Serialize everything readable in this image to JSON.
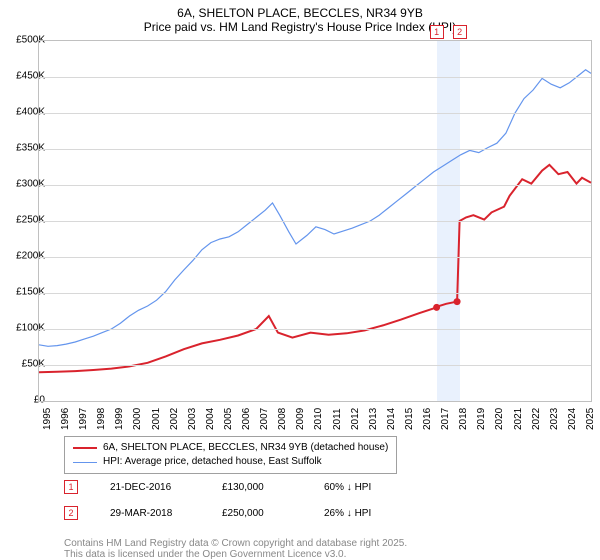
{
  "title_line1": "6A, SHELTON PLACE, BECCLES, NR34 9YB",
  "title_line2": "Price paid vs. HM Land Registry's House Price Index (HPI)",
  "chart": {
    "type": "line",
    "y_min": 0,
    "y_max": 500000,
    "y_step": 50000,
    "y_tick_labels": [
      "£0",
      "£50K",
      "£100K",
      "£150K",
      "£200K",
      "£250K",
      "£300K",
      "£350K",
      "£400K",
      "£450K",
      "£500K"
    ],
    "x_min": 1995,
    "x_max": 2025,
    "x_labels": [
      "1995",
      "1996",
      "1997",
      "1998",
      "1999",
      "2000",
      "2001",
      "2002",
      "2003",
      "2004",
      "2005",
      "2006",
      "2007",
      "2008",
      "2009",
      "2010",
      "2011",
      "2012",
      "2013",
      "2014",
      "2015",
      "2016",
      "2017",
      "2018",
      "2019",
      "2020",
      "2021",
      "2022",
      "2023",
      "2024",
      "2025"
    ],
    "grid_color": "#d8d8d8",
    "border_color": "#c0c0c0",
    "background_color": "#ffffff",
    "highlight_band": {
      "x_start": 2016.97,
      "x_end": 2018.24,
      "color": "#dbe8fc"
    },
    "series": [
      {
        "name": "price_paid",
        "label": "6A, SHELTON PLACE, BECCLES, NR34 9YB (detached house)",
        "color": "#d9232d",
        "width": 2,
        "data": [
          [
            1995,
            40000
          ],
          [
            1996,
            40500
          ],
          [
            1997,
            41500
          ],
          [
            1998,
            43000
          ],
          [
            1999,
            45000
          ],
          [
            2000,
            48000
          ],
          [
            2001,
            53000
          ],
          [
            2002,
            62000
          ],
          [
            2003,
            72000
          ],
          [
            2004,
            80000
          ],
          [
            2005,
            85000
          ],
          [
            2006,
            91000
          ],
          [
            2007,
            100000
          ],
          [
            2007.7,
            118000
          ],
          [
            2008.2,
            95000
          ],
          [
            2009,
            88000
          ],
          [
            2010,
            95000
          ],
          [
            2011,
            92000
          ],
          [
            2012,
            94000
          ],
          [
            2013,
            98000
          ],
          [
            2014,
            105000
          ],
          [
            2015,
            113000
          ],
          [
            2016,
            122000
          ],
          [
            2016.97,
            130000
          ],
          [
            2017.1,
            132000
          ],
          [
            2017.5,
            135000
          ],
          [
            2018.1,
            138000
          ],
          [
            2018.24,
            250000
          ],
          [
            2018.6,
            255000
          ],
          [
            2019,
            258000
          ],
          [
            2019.6,
            252000
          ],
          [
            2020,
            262000
          ],
          [
            2020.7,
            270000
          ],
          [
            2021,
            285000
          ],
          [
            2021.7,
            308000
          ],
          [
            2022.2,
            302000
          ],
          [
            2022.8,
            320000
          ],
          [
            2023.2,
            328000
          ],
          [
            2023.7,
            315000
          ],
          [
            2024.2,
            318000
          ],
          [
            2024.7,
            302000
          ],
          [
            2025,
            310000
          ],
          [
            2025.5,
            303000
          ]
        ]
      },
      {
        "name": "hpi",
        "label": "HPI: Average price, detached house, East Suffolk",
        "color": "#6495ed",
        "width": 1.2,
        "data": [
          [
            1995,
            78000
          ],
          [
            1995.5,
            76000
          ],
          [
            1996,
            77000
          ],
          [
            1996.5,
            79000
          ],
          [
            1997,
            82000
          ],
          [
            1997.5,
            86000
          ],
          [
            1998,
            90000
          ],
          [
            1998.5,
            95000
          ],
          [
            1999,
            100000
          ],
          [
            1999.5,
            108000
          ],
          [
            2000,
            118000
          ],
          [
            2000.5,
            126000
          ],
          [
            2001,
            132000
          ],
          [
            2001.5,
            140000
          ],
          [
            2002,
            152000
          ],
          [
            2002.5,
            168000
          ],
          [
            2003,
            182000
          ],
          [
            2003.5,
            195000
          ],
          [
            2004,
            210000
          ],
          [
            2004.5,
            220000
          ],
          [
            2005,
            225000
          ],
          [
            2005.5,
            228000
          ],
          [
            2006,
            235000
          ],
          [
            2006.5,
            245000
          ],
          [
            2007,
            255000
          ],
          [
            2007.5,
            265000
          ],
          [
            2007.9,
            275000
          ],
          [
            2008.3,
            258000
          ],
          [
            2008.8,
            235000
          ],
          [
            2009.2,
            218000
          ],
          [
            2009.8,
            230000
          ],
          [
            2010.3,
            242000
          ],
          [
            2010.8,
            238000
          ],
          [
            2011.3,
            232000
          ],
          [
            2011.8,
            236000
          ],
          [
            2012.3,
            240000
          ],
          [
            2012.8,
            245000
          ],
          [
            2013.3,
            250000
          ],
          [
            2013.8,
            258000
          ],
          [
            2014.3,
            268000
          ],
          [
            2014.8,
            278000
          ],
          [
            2015.3,
            288000
          ],
          [
            2015.8,
            298000
          ],
          [
            2016.3,
            308000
          ],
          [
            2016.8,
            318000
          ],
          [
            2017.3,
            326000
          ],
          [
            2017.8,
            334000
          ],
          [
            2018.3,
            342000
          ],
          [
            2018.8,
            348000
          ],
          [
            2019.3,
            345000
          ],
          [
            2019.8,
            352000
          ],
          [
            2020.3,
            358000
          ],
          [
            2020.8,
            372000
          ],
          [
            2021.3,
            400000
          ],
          [
            2021.8,
            420000
          ],
          [
            2022.3,
            432000
          ],
          [
            2022.8,
            448000
          ],
          [
            2023.3,
            440000
          ],
          [
            2023.8,
            435000
          ],
          [
            2024.3,
            442000
          ],
          [
            2024.8,
            452000
          ],
          [
            2025.2,
            460000
          ],
          [
            2025.5,
            455000
          ]
        ]
      }
    ],
    "markers": [
      {
        "id": "1",
        "x": 2016.97,
        "color": "#d9232d"
      },
      {
        "id": "2",
        "x": 2018.24,
        "color": "#d9232d"
      }
    ]
  },
  "legend": {
    "line1": {
      "color": "#d9232d",
      "width": 2,
      "text": "6A, SHELTON PLACE, BECCLES, NR34 9YB (detached house)"
    },
    "line2": {
      "color": "#6495ed",
      "width": 1.2,
      "text": "HPI: Average price, detached house, East Suffolk"
    }
  },
  "transactions": [
    {
      "id": "1",
      "color": "#d9232d",
      "date": "21-DEC-2016",
      "price": "£130,000",
      "delta": "60% ↓ HPI"
    },
    {
      "id": "2",
      "color": "#d9232d",
      "date": "29-MAR-2018",
      "price": "£250,000",
      "delta": "26% ↓ HPI"
    }
  ],
  "footnote_line1": "Contains HM Land Registry data © Crown copyright and database right 2025.",
  "footnote_line2": "This data is licensed under the Open Government Licence v3.0."
}
